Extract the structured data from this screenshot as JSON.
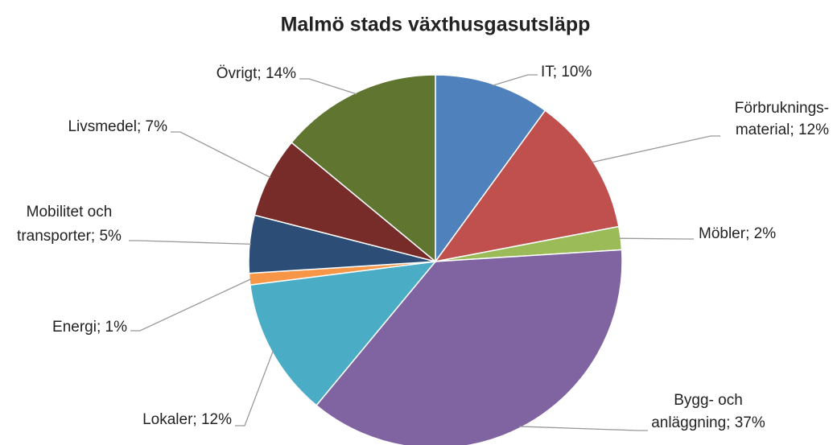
{
  "chart_data": {
    "type": "pie",
    "title": "Malmö stads växthusgasutsläpp",
    "values": [
      10,
      12,
      2,
      37,
      12,
      1,
      5,
      7,
      14
    ],
    "value_labels": [
      [
        "IT; 10%"
      ],
      [
        "Förbruknings-",
        "material; 12%"
      ],
      [
        "Möbler; 2%"
      ],
      [
        "Bygg- och",
        "anläggning; 37%"
      ],
      [
        "Lokaler; 12%"
      ],
      [
        "Energi; 1%"
      ],
      [
        "Mobilitet och",
        "transporter; 5%"
      ],
      [
        "Livsmedel; 7%"
      ],
      [
        "Övrigt; 14%"
      ]
    ],
    "colors": [
      "#4f81bd",
      "#c0504d",
      "#9bbb59",
      "#8064a2",
      "#4bacc6",
      "#f79646",
      "#2c4d75",
      "#772c2a",
      "#5f7530"
    ]
  }
}
